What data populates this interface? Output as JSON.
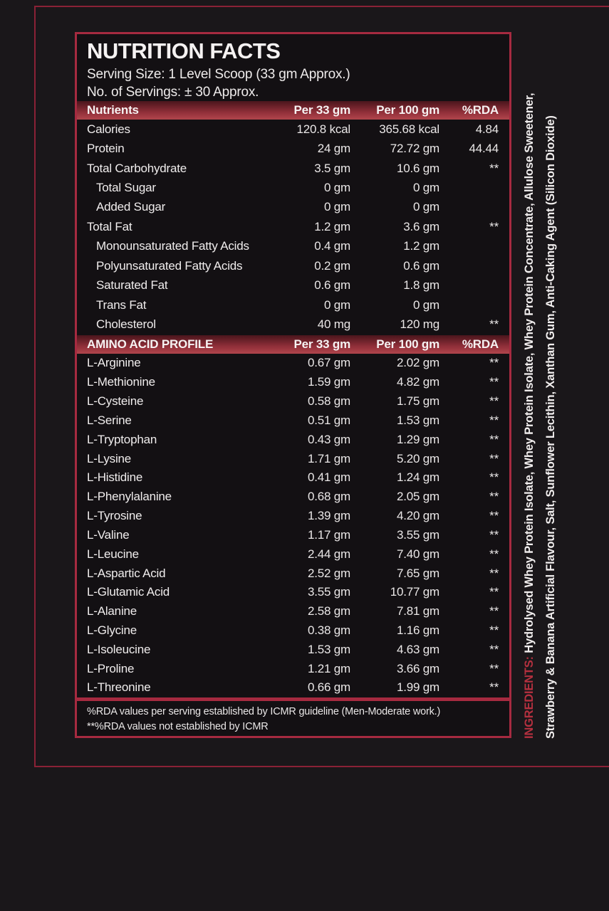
{
  "colors": {
    "background": "#1a171a",
    "panel_background": "#131013",
    "border_crimson": "#a62a40",
    "outer_frame": "#8a2136",
    "band_gradient_top": "#4a151c",
    "band_gradient_bottom": "#b1454c",
    "text_white": "#efecec",
    "ingredients_label_red": "#b5303f"
  },
  "panel": {
    "title": "NUTRITION FACTS",
    "serving_size": "Serving Size: 1 Level Scoop (33 gm Approx.)",
    "servings": "No. of Servings: ± 30 Approx.",
    "nutrients_header": {
      "label": "Nutrients",
      "col_per33": "Per 33 gm",
      "col_per100": "Per 100 gm",
      "col_rda": "%RDA"
    },
    "nutrient_rows": [
      {
        "label": "Calories",
        "per33": "120.8 kcal",
        "per100": "365.68 kcal",
        "rda": "4.84",
        "indent": false
      },
      {
        "label": "Protein",
        "per33": "24 gm",
        "per100": "72.72 gm",
        "rda": "44.44",
        "indent": false
      },
      {
        "label": "Total Carbohydrate",
        "per33": "3.5 gm",
        "per100": "10.6 gm",
        "rda": "**",
        "indent": false
      },
      {
        "label": "Total Sugar",
        "per33": "0 gm",
        "per100": "0 gm",
        "rda": "",
        "indent": true
      },
      {
        "label": "Added Sugar",
        "per33": "0 gm",
        "per100": "0 gm",
        "rda": "",
        "indent": true
      },
      {
        "label": "Total Fat",
        "per33": "1.2 gm",
        "per100": "3.6 gm",
        "rda": "**",
        "indent": false
      },
      {
        "label": "Monounsaturated Fatty Acids",
        "per33": "0.4 gm",
        "per100": "1.2 gm",
        "rda": "",
        "indent": true
      },
      {
        "label": "Polyunsaturated Fatty Acids",
        "per33": "0.2 gm",
        "per100": "0.6 gm",
        "rda": "",
        "indent": true
      },
      {
        "label": "Saturated Fat",
        "per33": "0.6 gm",
        "per100": "1.8 gm",
        "rda": "",
        "indent": true
      },
      {
        "label": "Trans Fat",
        "per33": "0 gm",
        "per100": "0 gm",
        "rda": "",
        "indent": true
      },
      {
        "label": "Cholesterol",
        "per33": "40 mg",
        "per100": "120 mg",
        "rda": "**",
        "indent": true
      }
    ],
    "amino_header": {
      "label": "AMINO ACID PROFILE",
      "col_per33": "Per 33 gm",
      "col_per100": "Per 100 gm",
      "col_rda": "%RDA"
    },
    "amino_rows": [
      {
        "label": "L-Arginine",
        "per33": "0.67 gm",
        "per100": "2.02 gm",
        "rda": "**",
        "indent": false
      },
      {
        "label": "L-Methionine",
        "per33": "1.59 gm",
        "per100": "4.82 gm",
        "rda": "**",
        "indent": false
      },
      {
        "label": "L-Cysteine",
        "per33": "0.58 gm",
        "per100": "1.75 gm",
        "rda": "**",
        "indent": false
      },
      {
        "label": "L-Serine",
        "per33": "0.51 gm",
        "per100": "1.53 gm",
        "rda": "**",
        "indent": false
      },
      {
        "label": "L-Tryptophan",
        "per33": "0.43 gm",
        "per100": "1.29 gm",
        "rda": "**",
        "indent": false
      },
      {
        "label": "L-Lysine",
        "per33": "1.71 gm",
        "per100": "5.20 gm",
        "rda": "**",
        "indent": false
      },
      {
        "label": "L-Histidine",
        "per33": "0.41 gm",
        "per100": "1.24 gm",
        "rda": "**",
        "indent": false
      },
      {
        "label": "L-Phenylalanine",
        "per33": "0.68 gm",
        "per100": "2.05 gm",
        "rda": "**",
        "indent": false
      },
      {
        "label": "L-Tyrosine",
        "per33": "1.39 gm",
        "per100": "4.20 gm",
        "rda": "**",
        "indent": false
      },
      {
        "label": "L-Valine",
        "per33": "1.17 gm",
        "per100": "3.55 gm",
        "rda": "**",
        "indent": false
      },
      {
        "label": "L-Leucine",
        "per33": "2.44 gm",
        "per100": "7.40 gm",
        "rda": "**",
        "indent": false
      },
      {
        "label": "L-Aspartic Acid",
        "per33": "2.52 gm",
        "per100": "7.65 gm",
        "rda": "**",
        "indent": false
      },
      {
        "label": "L-Glutamic Acid",
        "per33": "3.55 gm",
        "per100": "10.77 gm",
        "rda": "**",
        "indent": false
      },
      {
        "label": "L-Alanine",
        "per33": "2.58 gm",
        "per100": "7.81 gm",
        "rda": "**",
        "indent": false
      },
      {
        "label": "L-Glycine",
        "per33": "0.38 gm",
        "per100": "1.16 gm",
        "rda": "**",
        "indent": false
      },
      {
        "label": "L-Isoleucine",
        "per33": "1.53 gm",
        "per100": "4.63 gm",
        "rda": "**",
        "indent": false
      },
      {
        "label": "L-Proline",
        "per33": "1.21 gm",
        "per100": "3.66 gm",
        "rda": "**",
        "indent": false
      },
      {
        "label": "L-Threonine",
        "per33": "0.66 gm",
        "per100": "1.99 gm",
        "rda": "**",
        "indent": false
      }
    ],
    "notes": [
      "%RDA values per serving established by ICMR guideline (Men-Moderate work.)",
      "**%RDA values not established by ICMR"
    ]
  },
  "ingredients": {
    "label": "INGREDIENTS:",
    "line1": "Hydrolysed Whey Protein Isolate, Whey Protein Isolate, Whey Protein Concentrate, Allulose Sweetener,",
    "line2": "Strawberry & Banana  Artificial Flavour, Salt, Sunflower Lecithin, Xanthan Gum, Anti-Caking Agent (Silicon Dioxide)"
  }
}
